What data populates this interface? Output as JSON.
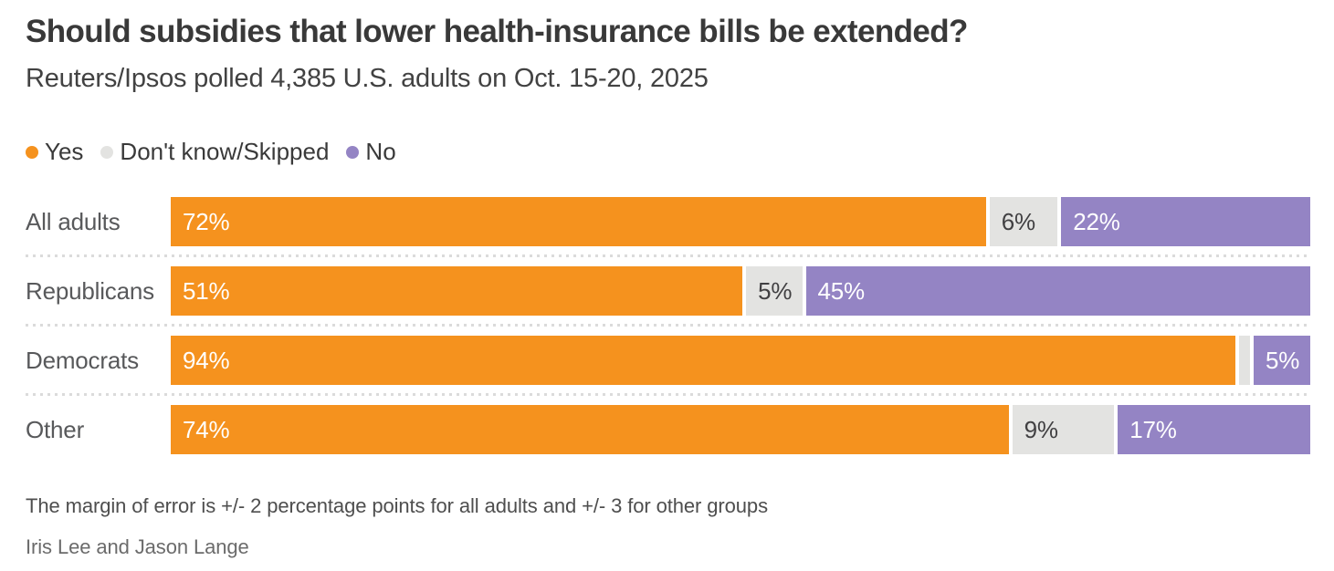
{
  "header": {
    "title": "Should subsidies that lower health-insurance bills be extended?",
    "subtitle": "Reuters/Ipsos polled 4,385 U.S. adults on Oct. 15-20, 2025"
  },
  "chart_data": {
    "type": "bar",
    "stacked": true,
    "orientation": "horizontal",
    "xlim": [
      0,
      100
    ],
    "grid": false,
    "legend_position": "top",
    "categories": [
      "All adults",
      "Republicans",
      "Democrats",
      "Other"
    ],
    "series": [
      {
        "name": "Yes",
        "color": "#F5921E",
        "label_color": "#FFFFFF",
        "values": [
          72,
          51,
          94,
          74
        ],
        "labels": [
          "72%",
          "51%",
          "94%",
          "74%"
        ]
      },
      {
        "name": "Don't know/Skipped",
        "color": "#E3E3E1",
        "label_color": "#414042",
        "values": [
          6,
          5,
          1,
          9
        ],
        "labels": [
          "6%",
          "5%",
          "",
          "9%"
        ]
      },
      {
        "name": "No",
        "color": "#9484C4",
        "label_color": "#FFFFFF",
        "values": [
          22,
          45,
          5,
          17
        ],
        "labels": [
          "22%",
          "45%",
          "5%",
          "17%"
        ]
      }
    ]
  },
  "footer": {
    "note": "The margin of error is +/- 2 percentage points for all adults and +/- 3 for other groups",
    "byline": "Iris Lee and Jason Lange"
  }
}
